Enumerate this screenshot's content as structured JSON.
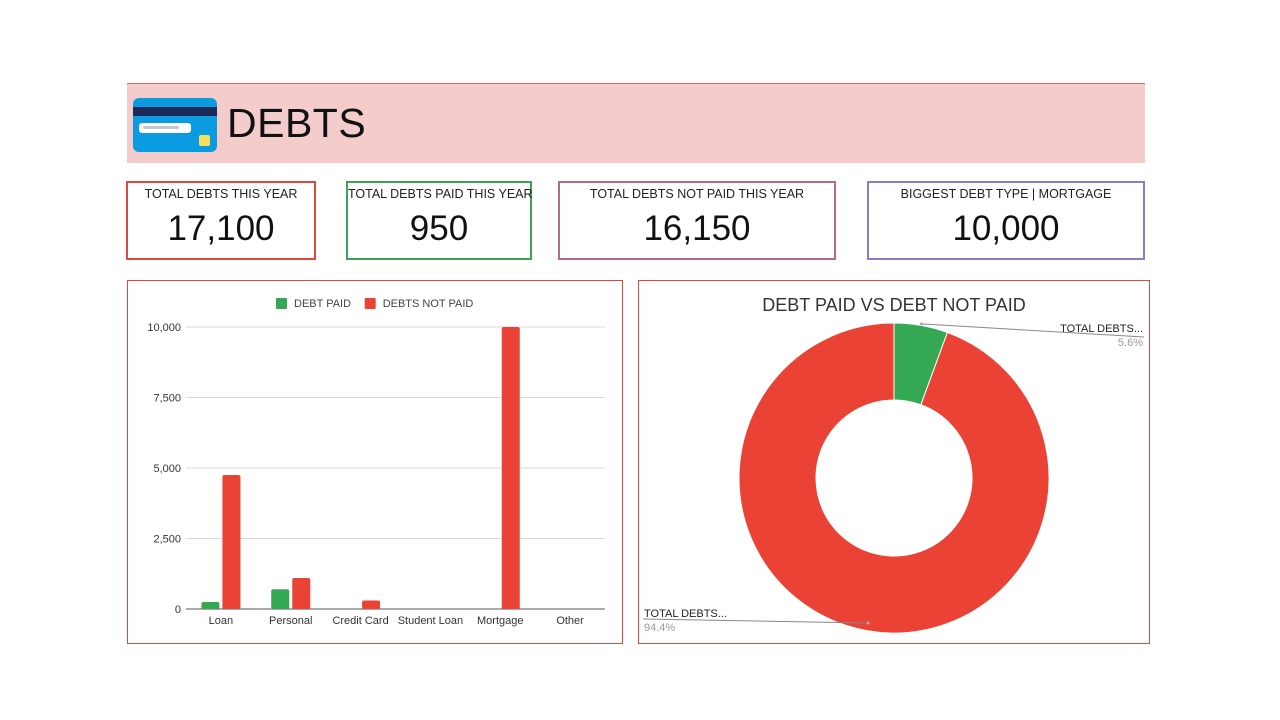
{
  "header": {
    "title": "DEBTS",
    "icon": "credit-card-icon"
  },
  "kpis": [
    {
      "label": "TOTAL DEBTS THIS YEAR",
      "value": "17,100",
      "color": "#e0483c"
    },
    {
      "label": "TOTAL DEBTS PAID THIS YEAR",
      "value": "950",
      "color": "#3aa356"
    },
    {
      "label": "TOTAL DEBTS NOT PAID THIS YEAR",
      "value": "16,150",
      "color": "#b4698f"
    },
    {
      "label": "BIGGEST DEBT TYPE | MORTGAGE",
      "value": "10,000",
      "color": "#8e7cc3"
    }
  ],
  "chart_data": [
    {
      "type": "bar",
      "title": "",
      "categories": [
        "Loan",
        "Personal",
        "Credit Card",
        "Student Loan",
        "Mortgage",
        "Other"
      ],
      "series": [
        {
          "name": "DEBT PAID",
          "color": "#34a853",
          "values": [
            250,
            700,
            0,
            0,
            0,
            0
          ]
        },
        {
          "name": "DEBTS NOT PAID",
          "color": "#ea4335",
          "values": [
            4750,
            1100,
            300,
            0,
            10000,
            0
          ]
        }
      ],
      "ylim": [
        0,
        10000
      ],
      "yticks": [
        0,
        2500,
        5000,
        7500,
        10000
      ],
      "ytick_labels": [
        "0",
        "2,500",
        "5,000",
        "7,500",
        "10,000"
      ],
      "grid": true,
      "legend": "top"
    },
    {
      "type": "pie",
      "title": "DEBT PAID VS DEBT NOT PAID",
      "donut": true,
      "slices": [
        {
          "label": "TOTAL DEBTS...",
          "percent_label": "5.6%",
          "value": 5.6,
          "color": "#34a853"
        },
        {
          "label": "TOTAL DEBTS...",
          "percent_label": "94.4%",
          "value": 94.4,
          "color": "#ea4335"
        }
      ]
    }
  ]
}
